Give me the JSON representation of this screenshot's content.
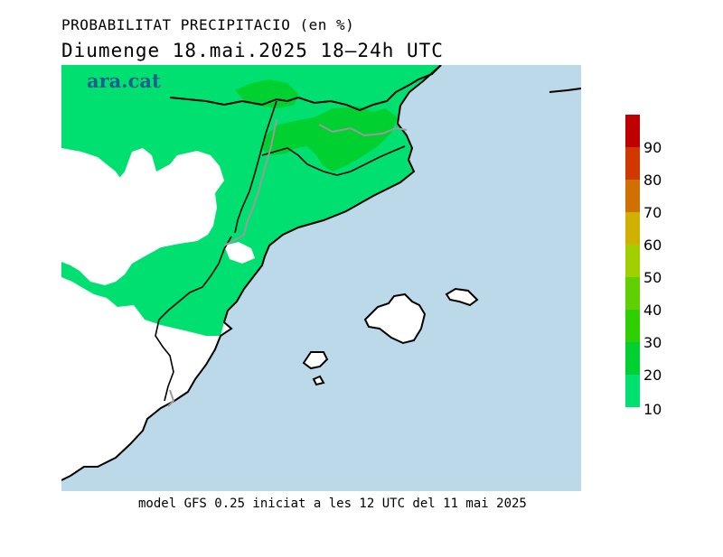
{
  "header": {
    "title": "PROBABILITAT PRECIPITACIO (en %)",
    "subtitle": "Diumenge  18.mai.2025  18—24h  UTC"
  },
  "logo": {
    "text": "ara.cat"
  },
  "footer": {
    "text": "model GFS 0.25 iniciat a les 12 UTC del 11 mai 2025"
  },
  "colors": {
    "sea": "#bcd9ea",
    "land": "#ffffff",
    "green_10_20": "#00e070",
    "green_20_30": "#00d030",
    "border": "#000000",
    "inner_border": "#9a9a9a"
  },
  "legend": {
    "labels": [
      "90",
      "80",
      "70",
      "60",
      "50",
      "40",
      "30",
      "20",
      "10"
    ],
    "bins": [
      {
        "range": "90-100",
        "color": "#c00000"
      },
      {
        "range": "80-90",
        "color": "#d03800"
      },
      {
        "range": "70-80",
        "color": "#d07000"
      },
      {
        "range": "60-70",
        "color": "#d0b000"
      },
      {
        "range": "50-60",
        "color": "#a0d000"
      },
      {
        "range": "40-50",
        "color": "#60d000"
      },
      {
        "range": "30-40",
        "color": "#30d000"
      },
      {
        "range": "20-30",
        "color": "#00d030"
      },
      {
        "range": "10-20",
        "color": "#00e070"
      }
    ]
  }
}
